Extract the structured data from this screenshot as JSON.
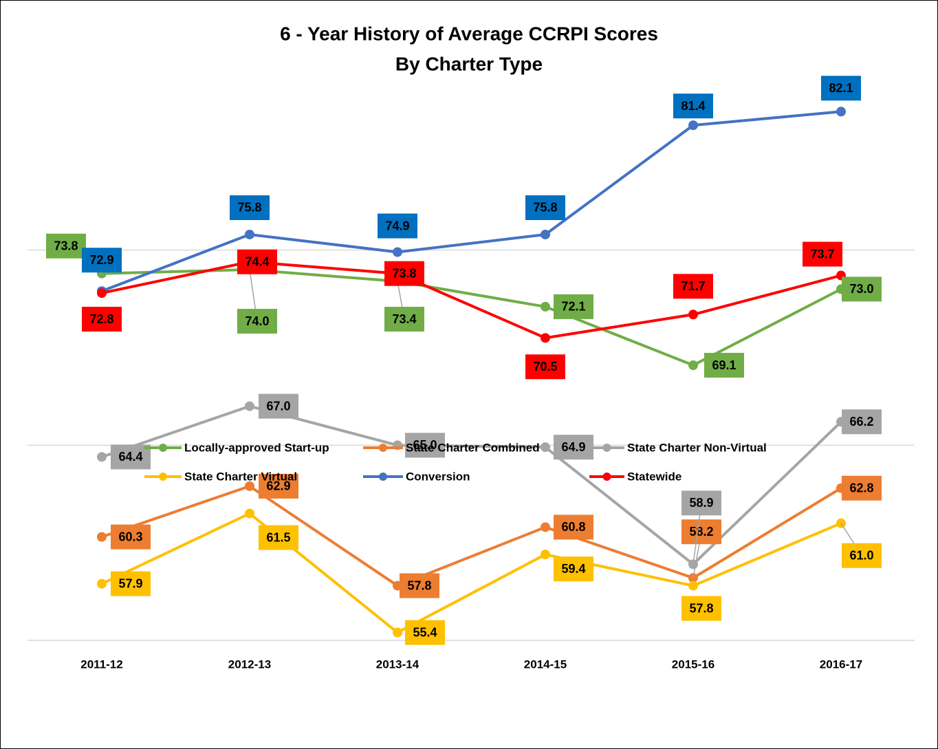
{
  "chart_data": {
    "type": "line",
    "title": "6 - Year History of Average CCRPI Scores",
    "subtitle": "By Charter Type",
    "categories": [
      "2011-12",
      "2012-13",
      "2013-14",
      "2014-15",
      "2015-16",
      "2016-17"
    ],
    "ylim": [
      55,
      85
    ],
    "yticks": [
      55,
      65,
      75
    ],
    "grid": true,
    "series": [
      {
        "name": "Locally-approved Start-up",
        "color": "#70ad47",
        "label_color": "#70ad47",
        "values": [
          73.8,
          74.0,
          73.4,
          72.1,
          69.1,
          73.0
        ]
      },
      {
        "name": "State Charter Combined",
        "color": "#ed7d31",
        "label_color": "#ed7d31",
        "values": [
          60.3,
          62.9,
          57.8,
          60.8,
          58.2,
          62.8
        ]
      },
      {
        "name": "State Charter Non-Virtual",
        "color": "#a5a5a5",
        "label_color": "#a5a5a5",
        "values": [
          64.4,
          67.0,
          65.0,
          64.9,
          58.9,
          66.2
        ]
      },
      {
        "name": "State Charter Virtual",
        "color": "#ffc000",
        "label_color": "#ffc000",
        "values": [
          57.9,
          61.5,
          55.4,
          59.4,
          57.8,
          61.0
        ]
      },
      {
        "name": "Conversion",
        "color": "#4472c4",
        "label_color": "#0070c0",
        "values": [
          72.9,
          75.8,
          74.9,
          75.8,
          81.4,
          82.1
        ]
      },
      {
        "name": "Statewide",
        "color": "#ff0000",
        "label_color": "#ff0000",
        "values": [
          72.8,
          74.4,
          73.8,
          70.5,
          71.7,
          73.7
        ]
      }
    ]
  }
}
